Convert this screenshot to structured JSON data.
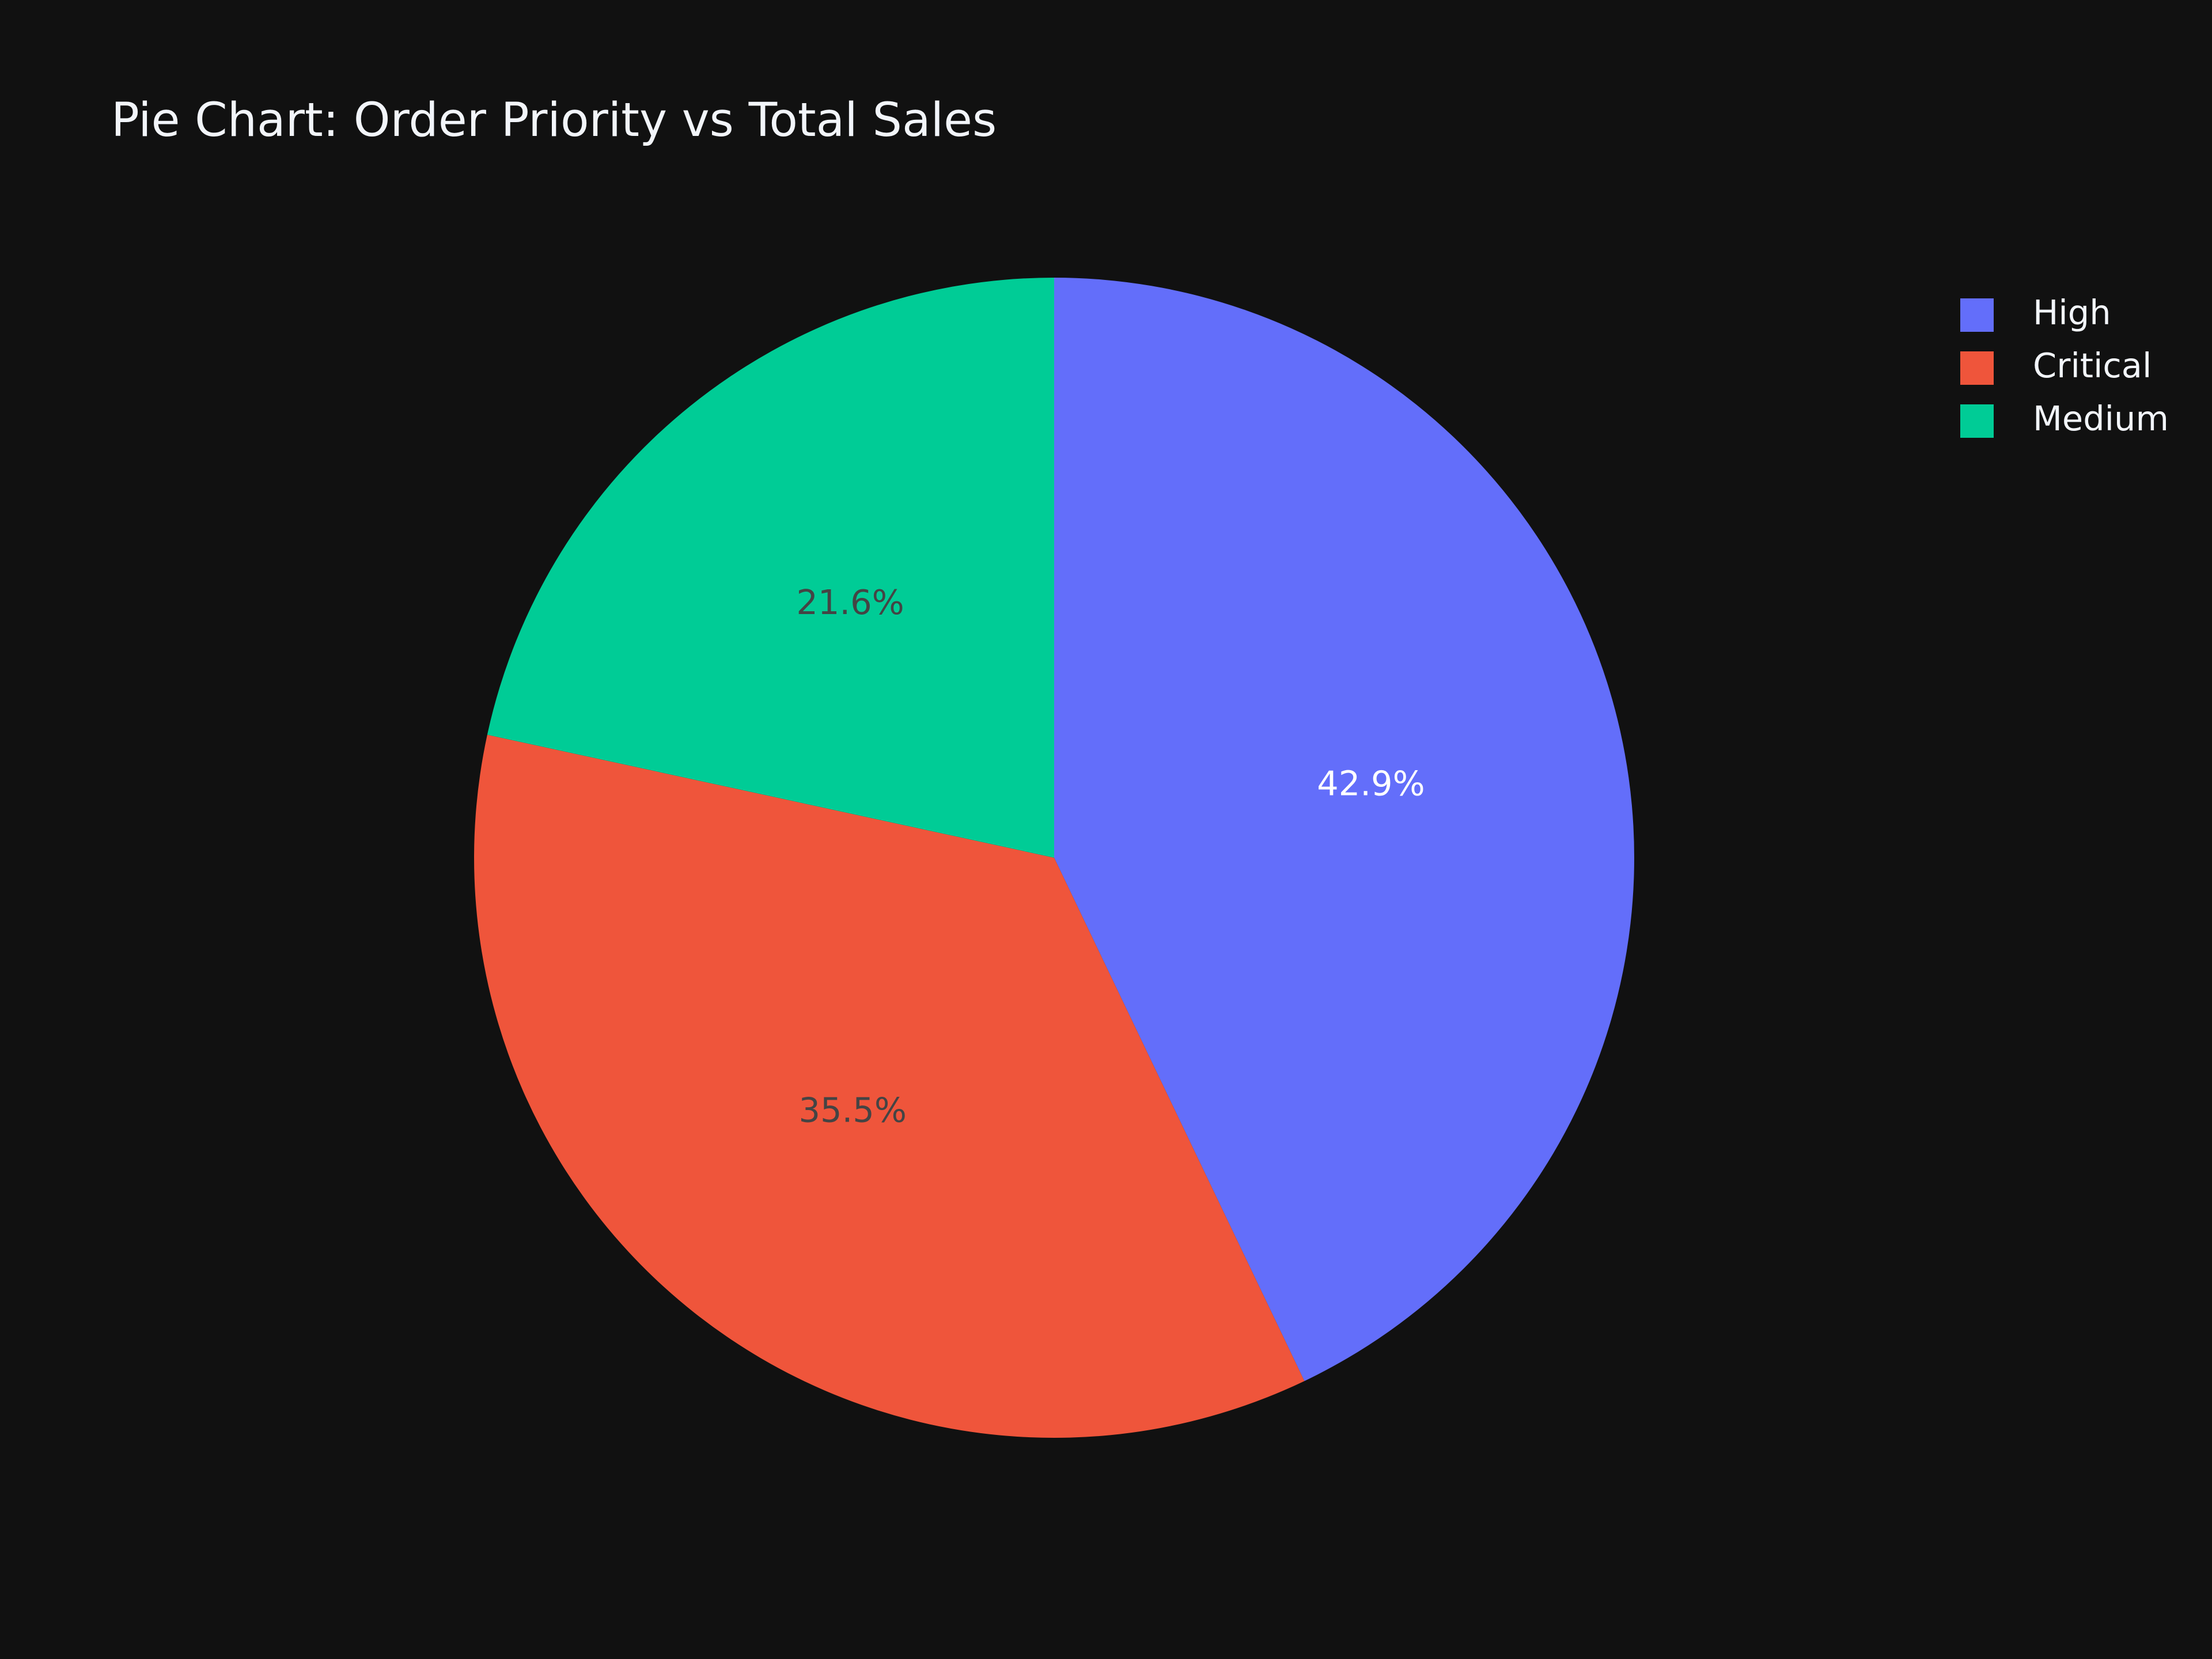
{
  "chart_data": {
    "type": "pie",
    "title": "Pie Chart: Order Priority vs Total Sales",
    "slices": [
      {
        "name": "High",
        "percent": 42.9,
        "label": "42.9%",
        "color": "#636efa",
        "label_color": "#ffffff"
      },
      {
        "name": "Critical",
        "percent": 35.5,
        "label": "35.5%",
        "color": "#ef553b",
        "label_color": "#444444"
      },
      {
        "name": "Medium",
        "percent": 21.6,
        "label": "21.6%",
        "color": "#00cc96",
        "label_color": "#444444"
      }
    ],
    "direction": "clockwise",
    "start": "top",
    "legend": {
      "position": "top-right",
      "items": [
        "High",
        "Critical",
        "Medium"
      ]
    }
  },
  "colors": {
    "background": "#111111",
    "text": "#f2f5fa"
  }
}
